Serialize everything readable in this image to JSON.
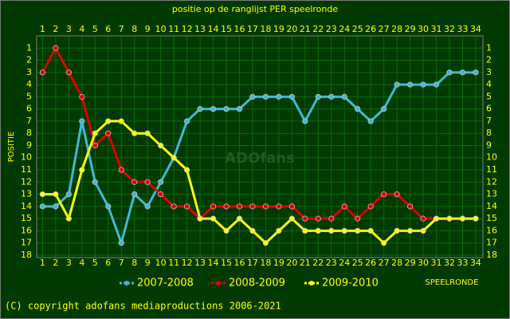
{
  "chart_data": {
    "type": "line",
    "title": "positie op de ranglijst PER speelronde",
    "ylabel": "POSITIE",
    "xlabel": "SPEELRONDE",
    "watermark": "ADOfans",
    "footer": "(C) copyright adofans mediaproductions 2006-2021",
    "x": [
      1,
      2,
      3,
      4,
      5,
      6,
      7,
      8,
      9,
      10,
      11,
      12,
      13,
      14,
      15,
      16,
      17,
      18,
      19,
      20,
      21,
      22,
      23,
      24,
      25,
      26,
      27,
      28,
      29,
      30,
      31,
      32,
      33,
      34
    ],
    "xlim": [
      0.55,
      34.55
    ],
    "xticks": [
      1,
      2,
      3,
      4,
      5,
      6,
      7,
      8,
      9,
      10,
      11,
      12,
      13,
      14,
      15,
      16,
      17,
      18,
      19,
      20,
      21,
      22,
      23,
      24,
      25,
      26,
      27,
      28,
      29,
      30,
      31,
      32,
      33,
      34
    ],
    "ylim": [
      18.2,
      0
    ],
    "yticks": [
      1,
      2,
      3,
      4,
      5,
      6,
      7,
      8,
      9,
      10,
      11,
      12,
      13,
      14,
      15,
      16,
      17,
      18
    ],
    "y_inverted": true,
    "grid": true,
    "series": [
      {
        "name": "2007-2008",
        "color": "#40b8d8",
        "values": [
          14,
          14,
          13,
          7,
          12,
          14,
          17,
          13,
          14,
          12,
          10,
          7,
          6,
          6,
          6,
          6,
          5,
          5,
          5,
          5,
          7,
          5,
          5,
          5,
          6,
          7,
          6,
          4,
          4,
          4,
          4,
          3,
          3,
          3
        ]
      },
      {
        "name": "2008-2009",
        "color": "#e00000",
        "values": [
          3,
          1,
          3,
          5,
          9,
          8,
          11,
          12,
          12,
          13,
          14,
          14,
          15,
          14,
          14,
          14,
          14,
          14,
          14,
          14,
          15,
          15,
          15,
          14,
          15,
          14,
          13,
          13,
          14,
          15,
          15,
          15,
          15,
          15
        ]
      },
      {
        "name": "2009-2010",
        "color": "#ffff00",
        "values": [
          13,
          13,
          15,
          11,
          8,
          7,
          7,
          8,
          8,
          9,
          10,
          11,
          15,
          15,
          16,
          15,
          16,
          17,
          16,
          15,
          16,
          16,
          16,
          16,
          16,
          16,
          17,
          16,
          16,
          16,
          15,
          15,
          15,
          15
        ]
      }
    ]
  }
}
